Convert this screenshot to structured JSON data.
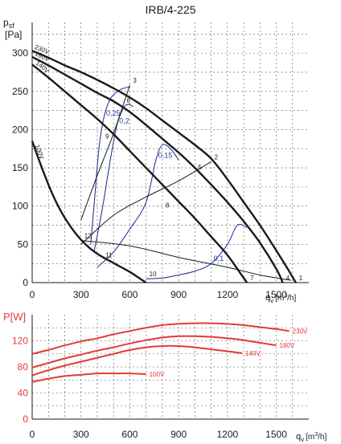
{
  "chart_data": [
    {
      "type": "line",
      "title": "IRB/4-225",
      "ylabel": "psf [Pa]",
      "ylabel_main": "p",
      "ylabel_sub": "sf",
      "ylabel_unit": "[Pa]",
      "xlabel_main": "q",
      "xlabel_sub": "v",
      "xlabel_unit": "[m",
      "xlabel_sup": "3",
      "xlabel_unit_end": "/h]",
      "xlim": [
        0,
        1700
      ],
      "ylim": [
        0,
        340
      ],
      "xticks": [
        "0",
        "300",
        "600",
        "900",
        "1200",
        "1500"
      ],
      "yticks": [
        "0",
        "50",
        "100",
        "150",
        "200",
        "250",
        "300"
      ],
      "grid": true,
      "series": [
        {
          "name": "230V",
          "label": "230V",
          "color": "#1a1a1a",
          "x": [
            0,
            100,
            200,
            300,
            400,
            500,
            600,
            700,
            800,
            900,
            1000,
            1100,
            1200,
            1300,
            1400,
            1500,
            1570,
            1620
          ],
          "y": [
            303,
            294,
            284,
            275,
            265,
            254,
            242,
            228,
            212,
            196,
            180,
            162,
            135,
            105,
            75,
            42,
            18,
            0
          ]
        },
        {
          "name": "180V",
          "label": "180V",
          "color": "#1a1a1a",
          "x": [
            0,
            100,
            200,
            300,
            400,
            500,
            600,
            700,
            800,
            900,
            1000,
            1100,
            1200,
            1300,
            1400,
            1500,
            1540
          ],
          "y": [
            295,
            284,
            272,
            260,
            248,
            237,
            223,
            206,
            188,
            170,
            150,
            128,
            105,
            80,
            52,
            18,
            0
          ]
        },
        {
          "name": "140V",
          "label": "140V",
          "color": "#1a1a1a",
          "x": [
            0,
            100,
            200,
            300,
            400,
            500,
            600,
            700,
            800,
            900,
            1000,
            1100,
            1200,
            1280,
            1320
          ],
          "y": [
            285,
            268,
            250,
            232,
            214,
            194,
            172,
            150,
            128,
            106,
            84,
            60,
            36,
            12,
            0
          ]
        },
        {
          "name": "100V",
          "label": "100V",
          "color": "#1a1a1a",
          "x": [
            0,
            60,
            120,
            180,
            240,
            300,
            360,
            420,
            480,
            540,
            600,
            650,
            700
          ],
          "y": [
            185,
            150,
            118,
            92,
            72,
            56,
            44,
            35,
            28,
            21,
            14,
            7,
            0
          ]
        }
      ],
      "system_lines": [
        {
          "name": "12-3",
          "color": "#1a1a1a",
          "x": [
            300,
            400,
            500,
            600
          ],
          "y": [
            82,
            140,
            195,
            258
          ]
        },
        {
          "name": "12-2",
          "color": "#1a1a1a",
          "x": [
            300,
            500,
            700,
            900,
            1100
          ],
          "y": [
            50,
            88,
            112,
            133,
            158
          ]
        },
        {
          "name": "12-1",
          "color": "#1a1a1a",
          "x": [
            300,
            600,
            900,
            1200,
            1400,
            1590
          ],
          "y": [
            55,
            48,
            33,
            20,
            10,
            3
          ]
        }
      ],
      "efficiency_curves": [
        {
          "label": "0,25",
          "color": "#2c3a9a",
          "x": [
            360,
            380,
            410,
            440,
            480,
            540,
            600
          ],
          "y": [
            50,
            100,
            175,
            215,
            240,
            252,
            256
          ]
        },
        {
          "label": "0,2",
          "color": "#2c3a9a",
          "x": [
            380,
            430,
            480,
            520,
            560,
            590,
            620
          ],
          "y": [
            40,
            95,
            160,
            205,
            228,
            233,
            230
          ]
        },
        {
          "label": "0,15",
          "color": "#2c3a9a",
          "x": [
            400,
            500,
            600,
            700,
            760,
            800,
            850,
            900
          ],
          "y": [
            20,
            40,
            70,
            105,
            160,
            180,
            175,
            160
          ]
        },
        {
          "label": "0,1",
          "color": "#2c3a9a",
          "x": [
            700,
            800,
            900,
            1000,
            1100,
            1200,
            1260,
            1320
          ],
          "y": [
            5,
            6,
            10,
            15,
            25,
            50,
            75,
            72
          ]
        }
      ],
      "point_labels": [
        {
          "label": "1",
          "x": 1620,
          "y": 0
        },
        {
          "label": "2",
          "x": 1100,
          "y": 158
        },
        {
          "label": "3",
          "x": 600,
          "y": 258
        },
        {
          "label": "4",
          "x": 1540,
          "y": 0
        },
        {
          "label": "5",
          "x": 1000,
          "y": 145
        },
        {
          "label": "6",
          "x": 560,
          "y": 232
        },
        {
          "label": "7",
          "x": 1320,
          "y": 0
        },
        {
          "label": "8",
          "x": 800,
          "y": 95
        },
        {
          "label": "9",
          "x": 430,
          "y": 185
        },
        {
          "label": "10",
          "x": 700,
          "y": 5
        },
        {
          "label": "11",
          "x": 430,
          "y": 30
        },
        {
          "label": "12",
          "x": 300,
          "y": 55
        }
      ]
    },
    {
      "type": "line",
      "title": "",
      "ylabel": "P[W]",
      "xlabel_main": "q",
      "xlabel_sub": "v",
      "xlabel_unit": "[m",
      "xlabel_sup": "3",
      "xlabel_unit_end": "/h]",
      "xlim": [
        0,
        1700
      ],
      "ylim": [
        0,
        160
      ],
      "xticks": [
        "0",
        "300",
        "600",
        "900",
        "1200",
        "1500"
      ],
      "yticks": [
        "0",
        "40",
        "80",
        "120"
      ],
      "grid": true,
      "series": [
        {
          "name": "230V",
          "label": "230V",
          "color": "#e53935",
          "x": [
            0,
            100,
            200,
            300,
            400,
            500,
            600,
            700,
            800,
            900,
            1000,
            1100,
            1200,
            1300,
            1400,
            1500,
            1580
          ],
          "y": [
            100,
            106,
            113,
            119,
            124,
            130,
            135,
            140,
            144,
            146,
            147,
            147,
            146,
            144,
            141,
            138,
            135
          ]
        },
        {
          "name": "180V",
          "label": "180V",
          "color": "#e53935",
          "x": [
            0,
            100,
            200,
            300,
            400,
            500,
            600,
            700,
            800,
            900,
            1000,
            1100,
            1200,
            1300,
            1400,
            1500
          ],
          "y": [
            79,
            86,
            93,
            99,
            105,
            110,
            116,
            121,
            125,
            127,
            127,
            126,
            124,
            121,
            117,
            113
          ]
        },
        {
          "name": "140V",
          "label": "140V",
          "color": "#e53935",
          "x": [
            0,
            100,
            200,
            300,
            400,
            500,
            600,
            700,
            800,
            900,
            1000,
            1100,
            1200,
            1290
          ],
          "y": [
            67,
            75,
            82,
            88,
            94,
            100,
            106,
            110,
            112,
            112,
            110,
            107,
            104,
            101
          ]
        },
        {
          "name": "100V",
          "label": "100V",
          "color": "#e53935",
          "x": [
            0,
            100,
            200,
            300,
            400,
            500,
            600,
            700
          ],
          "y": [
            57,
            62,
            66,
            68,
            70,
            70,
            70,
            69
          ]
        }
      ]
    }
  ]
}
